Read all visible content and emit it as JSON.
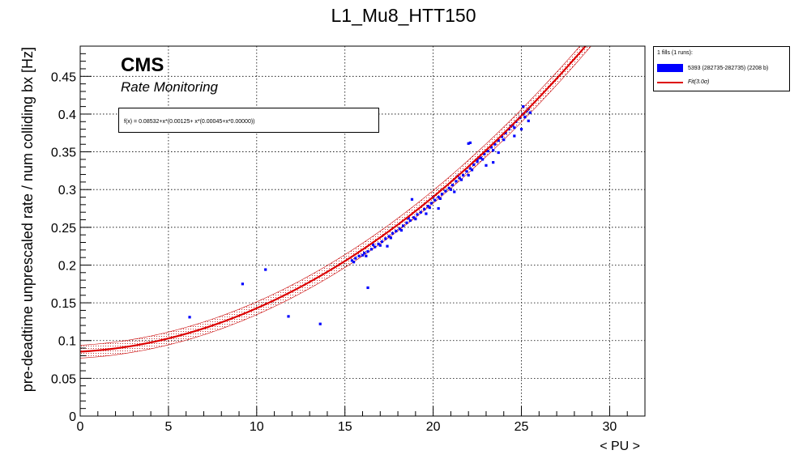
{
  "title": "L1_Mu8_HTT150",
  "legend": {
    "header": "1 fills (1 runs):",
    "entries": [
      {
        "label": "5393 (282735-282735) (2208 b)",
        "color": "#0000ff",
        "kind": "box"
      },
      {
        "label": "Fit(3.0σ)",
        "color": "#dd0000",
        "kind": "line"
      }
    ]
  },
  "annotations": {
    "cms": "CMS",
    "subtitle": "Rate Monitoring",
    "formula": "f(x) = 0.08532+x*(0.00125+ x*(0.00045+x*0.00000))"
  },
  "chart_data": {
    "type": "scatter",
    "title": "L1_Mu8_HTT150",
    "xlabel": "< PU >",
    "ylabel": "pre-deadtime unprescaled rate / num colliding bx [Hz]",
    "xlim": [
      0,
      32
    ],
    "ylim": [
      0,
      0.49
    ],
    "xticks": [
      0,
      5,
      10,
      15,
      20,
      25,
      30
    ],
    "yticks": [
      0,
      0.05,
      0.1,
      0.15,
      0.2,
      0.25,
      0.3,
      0.35,
      0.4,
      0.45
    ],
    "grid": true,
    "legend_position": "top-right outside",
    "fit": {
      "a0": 0.08532,
      "a1": 0.00125,
      "a2": 0.00045,
      "a3": 0.0,
      "sigma": 3.0,
      "band_halfwidth": 0.0085
    },
    "series": [
      {
        "name": "5393 (282735-282735) (2208 b)",
        "color": "#0000ff",
        "points": [
          [
            15.4,
            0.206
          ],
          [
            15.6,
            0.209
          ],
          [
            15.8,
            0.212
          ],
          [
            16.0,
            0.213
          ],
          [
            16.1,
            0.216
          ],
          [
            16.3,
            0.218
          ],
          [
            16.5,
            0.221
          ],
          [
            16.7,
            0.224
          ],
          [
            16.9,
            0.228
          ],
          [
            17.1,
            0.231
          ],
          [
            17.3,
            0.235
          ],
          [
            17.5,
            0.238
          ],
          [
            17.7,
            0.242
          ],
          [
            17.9,
            0.245
          ],
          [
            18.1,
            0.248
          ],
          [
            18.3,
            0.252
          ],
          [
            18.5,
            0.256
          ],
          [
            18.7,
            0.259
          ],
          [
            18.9,
            0.263
          ],
          [
            19.1,
            0.267
          ],
          [
            19.3,
            0.27
          ],
          [
            19.5,
            0.274
          ],
          [
            19.7,
            0.278
          ],
          [
            19.9,
            0.282
          ],
          [
            20.1,
            0.286
          ],
          [
            20.3,
            0.29
          ],
          [
            20.5,
            0.294
          ],
          [
            20.7,
            0.298
          ],
          [
            20.9,
            0.302
          ],
          [
            21.1,
            0.306
          ],
          [
            21.3,
            0.311
          ],
          [
            21.5,
            0.315
          ],
          [
            21.7,
            0.319
          ],
          [
            21.9,
            0.324
          ],
          [
            22.1,
            0.328
          ],
          [
            22.3,
            0.333
          ],
          [
            22.5,
            0.337
          ],
          [
            22.7,
            0.342
          ],
          [
            22.9,
            0.347
          ],
          [
            23.1,
            0.351
          ],
          [
            23.3,
            0.356
          ],
          [
            23.5,
            0.36
          ],
          [
            23.7,
            0.365
          ],
          [
            23.9,
            0.37
          ],
          [
            24.1,
            0.375
          ],
          [
            24.3,
            0.38
          ],
          [
            24.5,
            0.385
          ],
          [
            24.7,
            0.39
          ],
          [
            24.9,
            0.395
          ],
          [
            25.1,
            0.4
          ],
          [
            25.3,
            0.404
          ],
          [
            25.5,
            0.402
          ],
          [
            15.5,
            0.204
          ],
          [
            16.2,
            0.212
          ],
          [
            17.0,
            0.226
          ],
          [
            17.6,
            0.236
          ],
          [
            18.2,
            0.246
          ],
          [
            19.0,
            0.261
          ],
          [
            19.8,
            0.276
          ],
          [
            20.4,
            0.288
          ],
          [
            21.0,
            0.3
          ],
          [
            21.6,
            0.313
          ],
          [
            22.2,
            0.326
          ],
          [
            22.8,
            0.34
          ],
          [
            23.4,
            0.352
          ],
          [
            24.0,
            0.366
          ],
          [
            24.6,
            0.382
          ],
          [
            25.2,
            0.396
          ],
          [
            16.6,
            0.227
          ],
          [
            18.6,
            0.262
          ],
          [
            20.0,
            0.29
          ],
          [
            21.4,
            0.318
          ],
          [
            22.6,
            0.342
          ],
          [
            24.4,
            0.384
          ],
          [
            25.4,
            0.407
          ],
          [
            17.4,
            0.225
          ],
          [
            18.8,
            0.287
          ],
          [
            19.6,
            0.268
          ],
          [
            20.3,
            0.275
          ],
          [
            21.2,
            0.297
          ],
          [
            22.0,
            0.319
          ],
          [
            22.5,
            0.34
          ],
          [
            23.0,
            0.332
          ],
          [
            23.7,
            0.349
          ],
          [
            24.6,
            0.371
          ],
          [
            25.0,
            0.38
          ],
          [
            25.1,
            0.41
          ],
          [
            25.4,
            0.391
          ],
          [
            22.0,
            0.361
          ],
          [
            22.1,
            0.362
          ],
          [
            23.4,
            0.336
          ],
          [
            16.3,
            0.17
          ],
          [
            6.2,
            0.131
          ],
          [
            9.2,
            0.175
          ],
          [
            10.5,
            0.194
          ],
          [
            11.8,
            0.132
          ],
          [
            13.6,
            0.122
          ]
        ]
      }
    ]
  }
}
